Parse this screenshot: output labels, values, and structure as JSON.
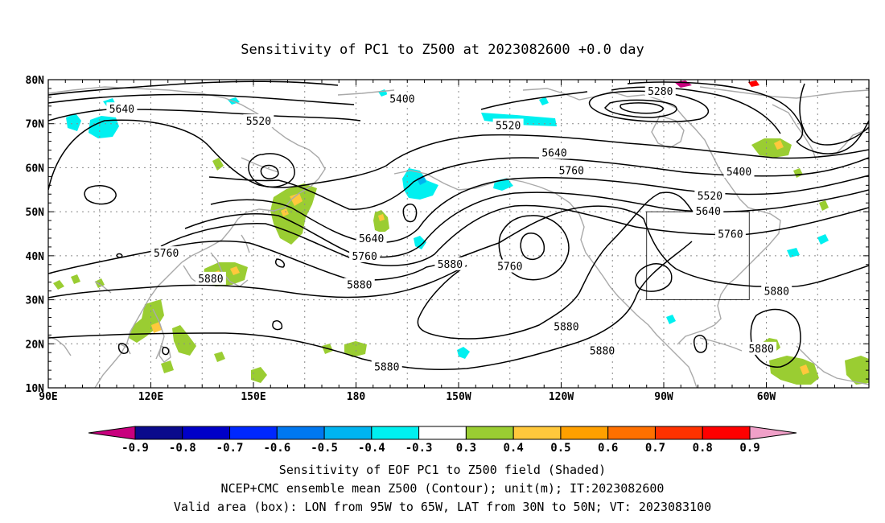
{
  "title": "Sensitivity of PC1 to Z500 at 2023082600 +0.0 day",
  "lat_labels": [
    "80N",
    "70N",
    "60N",
    "50N",
    "40N",
    "30N",
    "20N",
    "10N"
  ],
  "lon_labels": [
    "90E",
    "120E",
    "150E",
    "180",
    "150W",
    "120W",
    "90W",
    "60W"
  ],
  "contour_labels": [
    {
      "text": "5640",
      "lon": 111.5,
      "lat": 73.2
    },
    {
      "text": "5520",
      "lon": 151.5,
      "lat": 70.5
    },
    {
      "text": "5400",
      "lon": 193.5,
      "lat": 75.5
    },
    {
      "text": "5280",
      "lon": 269,
      "lat": 77.3
    },
    {
      "text": "5520",
      "lon": 224.5,
      "lat": 69.5
    },
    {
      "text": "5640",
      "lon": 238,
      "lat": 63.3
    },
    {
      "text": "5760",
      "lon": 243,
      "lat": 59.3
    },
    {
      "text": "5400",
      "lon": 292,
      "lat": 59
    },
    {
      "text": "5520",
      "lon": 283.5,
      "lat": 53.5
    },
    {
      "text": "5640",
      "lon": 283,
      "lat": 50
    },
    {
      "text": "5760",
      "lon": 289.5,
      "lat": 44.8
    },
    {
      "text": "5640",
      "lon": 184.5,
      "lat": 43.8
    },
    {
      "text": "5760",
      "lon": 182.5,
      "lat": 39.8
    },
    {
      "text": "5880",
      "lon": 207.5,
      "lat": 38
    },
    {
      "text": "5760",
      "lon": 225,
      "lat": 37.5
    },
    {
      "text": "5880",
      "lon": 181,
      "lat": 33.3
    },
    {
      "text": "5760",
      "lon": 124.5,
      "lat": 40.5
    },
    {
      "text": "5880",
      "lon": 137.5,
      "lat": 34.7
    },
    {
      "text": "5880",
      "lon": 241.5,
      "lat": 23.8
    },
    {
      "text": "5880",
      "lon": 252,
      "lat": 18.3
    },
    {
      "text": "5880",
      "lon": 189,
      "lat": 14.7
    },
    {
      "text": "5880",
      "lon": 303,
      "lat": 31.8
    },
    {
      "text": "5880",
      "lon": 298.5,
      "lat": 18.8
    }
  ],
  "valid_box": {
    "lon_min": 265,
    "lon_max": 295,
    "lat_min": 30,
    "lat_max": 50
  },
  "colorbar": {
    "labels": [
      "-0.9",
      "-0.8",
      "-0.7",
      "-0.6",
      "-0.5",
      "-0.4",
      "-0.3",
      "0.3",
      "0.4",
      "0.5",
      "0.6",
      "0.7",
      "0.8",
      "0.9"
    ],
    "colors": [
      "#c8007e",
      "#0a0a8c",
      "#0000c8",
      "#0028ff",
      "#0078f0",
      "#00b4f0",
      "#00f0f0",
      "#ffffff",
      "#9acd32",
      "#ffc83c",
      "#ffa000",
      "#ff7000",
      "#ff3200",
      "#ff0000",
      "#f0a0c8"
    ]
  },
  "captions": [
    "Sensitivity of EOF PC1 to Z500 field (Shaded)",
    "NCEP+CMC ensemble mean Z500 (Contour); unit(m); IT:2023082600",
    "Valid area (box): LON from 95W to 65W, LAT from 30N to 50N; VT: 2023083100"
  ]
}
